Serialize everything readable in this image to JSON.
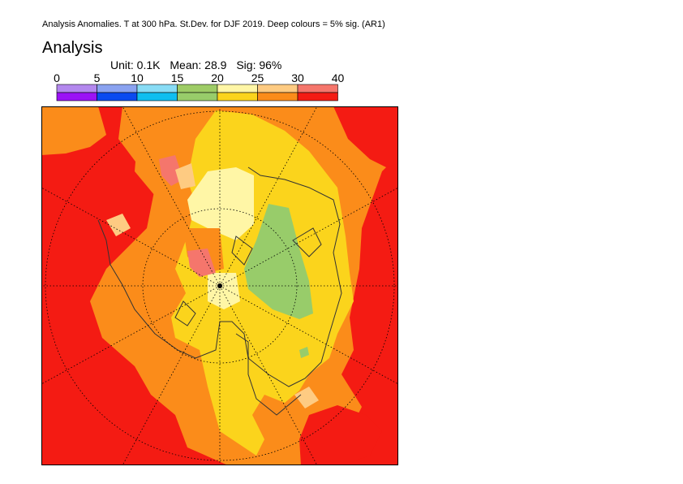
{
  "header": {
    "caption": "Analysis Anomalies. T at 300 hPa. St.Dev. for DJF 2019.  Deep colours = 5% sig. (AR1)"
  },
  "title": "Analysis",
  "stats": {
    "unit": "Unit: 0.1K",
    "mean": "Mean: 28.9",
    "sig": "Sig: 96%"
  },
  "legend": {
    "ticks": [
      "0",
      "5",
      "10",
      "15",
      "20",
      "25",
      "30",
      "40"
    ],
    "light_colors": [
      "#b388ee",
      "#8aa2f0",
      "#88dcf5",
      "#9ecc66",
      "#fff6a6",
      "#fecb82",
      "#f5766c"
    ],
    "deep_colors": [
      "#9b12f5",
      "#0a4af0",
      "#0fbef0",
      "#98cc6a",
      "#fbd41c",
      "#fb8c1a",
      "#f41b13"
    ]
  },
  "map": {
    "projection": "north-polar-stereographic",
    "colors": {
      "red": "#f41b13",
      "orange": "#fb8c1a",
      "yellow": "#fbd41c",
      "lightyellow": "#fff6a6",
      "green": "#98cc6a",
      "pink": "#f5766c",
      "peach": "#fecb82",
      "land_outline": "#333333",
      "grid": "#000000"
    }
  }
}
